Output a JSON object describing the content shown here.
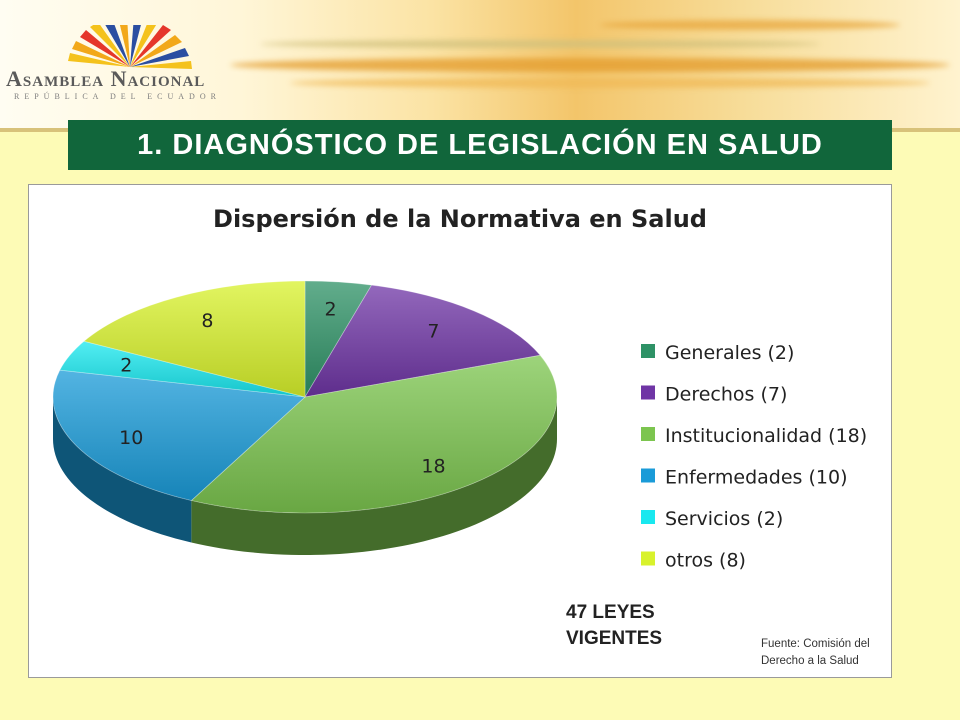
{
  "header": {
    "logo_text": "Asamblea Nacional",
    "logo_subtext": "REPÚBLICA DEL ECUADOR"
  },
  "slide": {
    "title": "1. DIAGNÓSTICO DE LEGISLACIÓN EN SALUD",
    "total_line1": "47 LEYES",
    "total_line2": "VIGENTES",
    "source_line1": "Fuente: Comisión del",
    "source_line2": "Derecho a la Salud"
  },
  "chart_data": {
    "type": "pie",
    "title": "Dispersión de la Normativa en Salud",
    "legend_position": "right",
    "categories": [
      "Generales",
      "Derechos",
      "Institucionalidad",
      "Enfermedades",
      "Servicios",
      "otros"
    ],
    "values": [
      2,
      7,
      18,
      10,
      2,
      8
    ],
    "legend_labels": [
      "Generales (2)",
      "Derechos (7)",
      "Institucionalidad (18)",
      "Enfermedades (10)",
      "Servicios (2)",
      "otros (8)"
    ],
    "data_labels": [
      "2",
      "7",
      "18",
      "10",
      "2",
      "8"
    ],
    "colors": [
      "#2e9266",
      "#6f35a5",
      "#7cc54f",
      "#1a9bd8",
      "#19e8ef",
      "#d8f22c"
    ]
  }
}
